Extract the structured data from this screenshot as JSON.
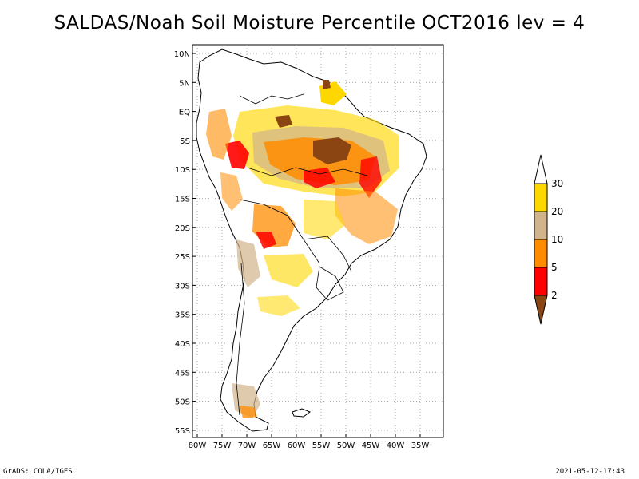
{
  "title": "SALDAS/Noah Soil Moisture Percentile OCT2016 lev = 4",
  "map": {
    "lat_labels": [
      "10N",
      "5N",
      "EQ",
      "5S",
      "10S",
      "15S",
      "20S",
      "25S",
      "30S",
      "35S",
      "40S",
      "45S",
      "50S",
      "55S"
    ],
    "lon_labels": [
      "80W",
      "75W",
      "70W",
      "65W",
      "60W",
      "55W",
      "50W",
      "45W",
      "40W",
      "35W"
    ],
    "grid": "dotted"
  },
  "legend": {
    "levels": [
      "2",
      "5",
      "10",
      "20",
      "30"
    ],
    "colors": [
      "#8b4513",
      "#ff0000",
      "#ff8c00",
      "#d2b48c",
      "#ffd700",
      "#ffffff"
    ]
  },
  "footer": {
    "left": "GrADS: COLA/IGES",
    "right": "2021-05-12-17:43"
  }
}
